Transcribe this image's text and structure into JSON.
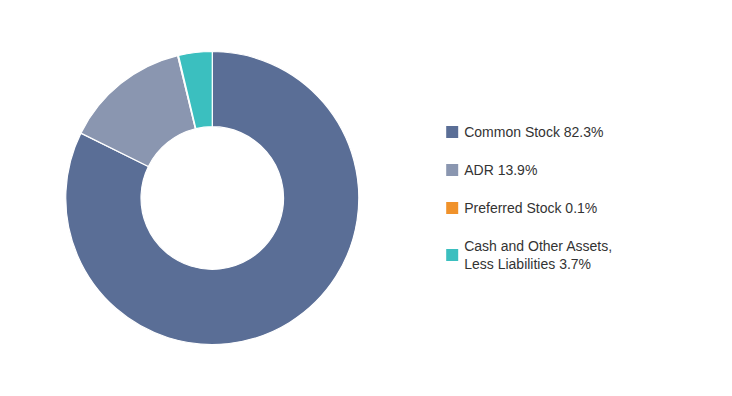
{
  "chart_data": {
    "type": "donut",
    "categories": [
      "Common Stock 82.3%",
      "ADR 13.9%",
      "Preferred Stock 0.1%",
      "Cash and Other Assets,\nLess Liabilities 3.7%"
    ],
    "values": [
      82.3,
      13.9,
      0.1,
      3.7
    ],
    "colors": [
      "#5a6e96",
      "#8a96b0",
      "#f0922b",
      "#3bbfbf"
    ],
    "legend": "right"
  }
}
